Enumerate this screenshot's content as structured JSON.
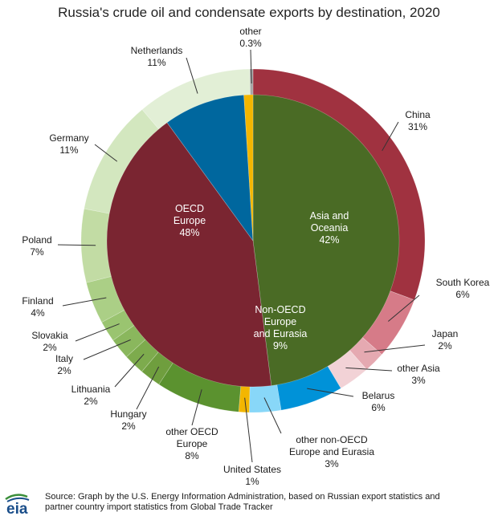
{
  "chart_data": {
    "type": "pie",
    "title": "Russia's crude oil and condensate exports by destination, 2020",
    "inner_ring": [
      {
        "name": "OECD Europe",
        "lines": [
          "OECD",
          "Europe",
          "48%"
        ],
        "value": 48,
        "color": "#4a6b25"
      },
      {
        "name": "Asia and Oceania",
        "lines": [
          "Asia and",
          "Oceania",
          "42%"
        ],
        "value": 42,
        "color": "#7a2531"
      },
      {
        "name": "Non-OECD Europe and Eurasia",
        "lines": [
          "Non-OECD",
          "Europe",
          "and Eurasia",
          "9%"
        ],
        "value": 9,
        "color": "#00679e"
      },
      {
        "name": "United States",
        "lines": [],
        "value": 1,
        "color": "#f3b600"
      }
    ],
    "outer_ring": [
      {
        "name": "China",
        "value": 31,
        "label": [
          "China",
          "31%"
        ],
        "color": "#a03240"
      },
      {
        "name": "South Korea",
        "value": 6,
        "label": [
          "South Korea",
          "6%"
        ],
        "color": "#d67b88"
      },
      {
        "name": "Japan",
        "value": 2,
        "label": [
          "Japan",
          "2%"
        ],
        "color": "#e5a9b1"
      },
      {
        "name": "other Asia",
        "value": 3,
        "label": [
          "other Asia",
          "3%"
        ],
        "color": "#f2d2d6"
      },
      {
        "name": "Belarus",
        "value": 6,
        "label": [
          "Belarus",
          "6%"
        ],
        "color": "#0092d8"
      },
      {
        "name": "other non-OECD Europe and Eurasia",
        "value": 3,
        "label": [
          "other non-OECD",
          "Europe and Eurasia",
          "3%"
        ],
        "color": "#88d7f8"
      },
      {
        "name": "United States",
        "value": 1,
        "label": [
          "United States",
          "1%"
        ],
        "color": "#f3b600"
      },
      {
        "name": "other OECD Europe",
        "value": 8,
        "label": [
          "other OECD",
          "Europe",
          "8%"
        ],
        "color": "#5b922f"
      },
      {
        "name": "Hungary",
        "value": 2,
        "label": [
          "Hungary",
          "2%"
        ],
        "color": "#6f9e3e"
      },
      {
        "name": "Lithuania",
        "value": 2,
        "label": [
          "Lithuania",
          "2%"
        ],
        "color": "#7dab4d"
      },
      {
        "name": "Italy",
        "value": 2,
        "label": [
          "Italy",
          "2%"
        ],
        "color": "#8ab75d"
      },
      {
        "name": "Slovakia",
        "value": 2,
        "label": [
          "Slovakia",
          "2%"
        ],
        "color": "#9ac470"
      },
      {
        "name": "Finland",
        "value": 4,
        "label": [
          "Finland",
          "4%"
        ],
        "color": "#abcf86"
      },
      {
        "name": "Poland",
        "value": 7,
        "label": [
          "Poland",
          "7%"
        ],
        "color": "#c2dca4"
      },
      {
        "name": "Germany",
        "value": 11,
        "label": [
          "Germany",
          "11%"
        ],
        "color": "#d3e7bf"
      },
      {
        "name": "Netherlands",
        "value": 11,
        "label": [
          "Netherlands",
          "11%"
        ],
        "color": "#e2efd6"
      },
      {
        "name": "other",
        "value": 0.3,
        "label": [
          "other",
          "0.3%"
        ],
        "color": "#a6a6a6"
      }
    ]
  },
  "footer": {
    "logo_text": "eia",
    "source_line1": "Source: Graph by the U.S. Energy Information Administration, based on Russian export statistics and",
    "source_line2": "partner country import statistics from Global Trade Tracker"
  },
  "colors": {
    "logo_blue": "#1a4e8a",
    "logo_green": "#3b8e3a"
  }
}
